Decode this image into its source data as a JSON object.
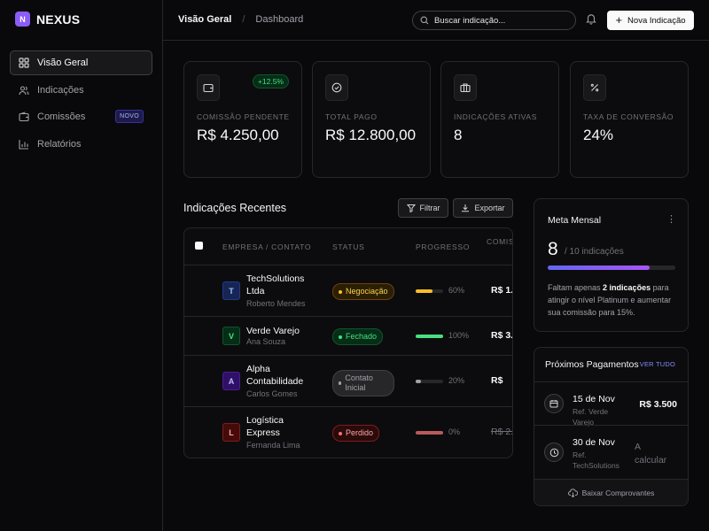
{
  "brand": {
    "logo_letter": "N",
    "name": "NEXUS"
  },
  "sidebar": {
    "items": [
      {
        "label": "Visão Geral",
        "icon": "grid-icon",
        "active": true
      },
      {
        "label": "Indicações",
        "icon": "users-icon"
      },
      {
        "label": "Comissões",
        "icon": "wallet-icon",
        "badge": "NOVO"
      },
      {
        "label": "Relatórios",
        "icon": "bar-chart-icon"
      }
    ]
  },
  "header": {
    "breadcrumb": [
      "Visão Geral",
      "Dashboard"
    ],
    "search_placeholder": "Buscar indicação...",
    "new_button": "Nova Indicação"
  },
  "stats": [
    {
      "label": "COMISSÃO PENDENTE",
      "value": "R$ 4.250,00",
      "delta": "+12.5%",
      "icon": "wallet-icon"
    },
    {
      "label": "TOTAL PAGO",
      "value": "R$ 12.800,00",
      "icon": "check-circle-icon"
    },
    {
      "label": "INDICAÇÕES ATIVAS",
      "value": "8",
      "icon": "briefcase-icon"
    },
    {
      "label": "TAXA DE CONVERSÃO",
      "value": "24%",
      "icon": "percent-icon"
    }
  ],
  "referrals": {
    "title": "Indicações Recentes",
    "filter_label": "Filtrar",
    "export_label": "Exportar",
    "columns": [
      "EMPRESA / CONTATO",
      "STATUS",
      "PROGRESSO",
      "COMISSÃO"
    ],
    "rows": [
      {
        "initial": "T",
        "company": "TechSolutions Ltda",
        "contact": "Roberto Mendes",
        "status": "Negociação",
        "progress": 60,
        "progress_label": "60%",
        "amount": "R$ 1.",
        "tone": "blue",
        "status_tone": "amber"
      },
      {
        "initial": "V",
        "company": "Verde Varejo",
        "contact": "Ana Souza",
        "status": "Fechado",
        "progress": 100,
        "progress_label": "100%",
        "amount": "R$ 3.",
        "tone": "green",
        "status_tone": "green"
      },
      {
        "initial": "A",
        "company": "Alpha Contabilidade",
        "contact": "Carlos Gomes",
        "status": "Contato Inicial",
        "progress": 20,
        "progress_label": "20%",
        "amount": "R$",
        "tone": "purple",
        "status_tone": "gray"
      },
      {
        "initial": "L",
        "company": "Logística Express",
        "contact": "Fernanda Lima",
        "status": "Perdido",
        "progress": 0,
        "progress_label": "0%",
        "amount": "R$ 2.",
        "tone": "red",
        "status_tone": "red",
        "struck": true
      }
    ]
  },
  "goal": {
    "title": "Meta Mensal",
    "menu_icon": "⋮",
    "current": "8",
    "total_label": "/ 10 indicações",
    "progress": 0.8,
    "text_before": "Faltam apenas ",
    "text_bold": "2 indicações",
    "text_after": " para atingir o nível Platinum e aumentar sua comissão para 15%."
  },
  "payments": {
    "title": "Próximos Pagamentos",
    "link": "VER TUDO",
    "items": [
      {
        "date": "15 de Nov",
        "ref": "Ref. Verde Varejo",
        "amount": "R$ 3.500",
        "icon": "calendar-icon"
      },
      {
        "date": "30 de Nov",
        "ref": "Ref. TechSolutions",
        "amount": "A calcular",
        "icon": "clock-icon"
      }
    ],
    "footer": "Baixar Comprovantes"
  },
  "colors": {
    "accent": "#8b5cf6",
    "amber": "#fbbf24",
    "green": "#4ade80",
    "red": "#f87171",
    "gray": "#a1a1aa"
  }
}
